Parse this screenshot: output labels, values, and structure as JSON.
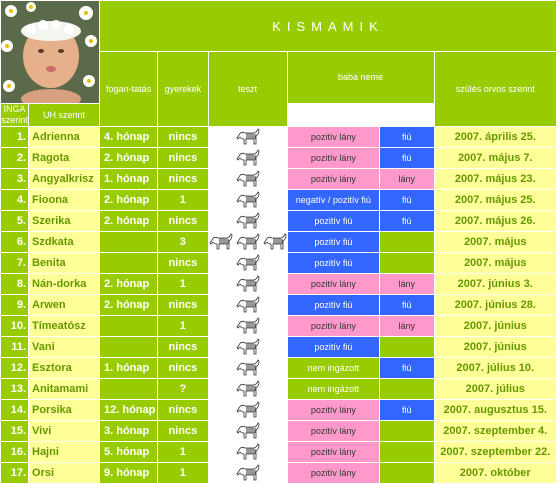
{
  "title": "KISMAMIK",
  "headers": {
    "foganatas": "fogan-tatás",
    "gyerekek": "gyerekek",
    "teszt": "teszt",
    "baba_neme": "baba neme",
    "inga": "INGA szerint",
    "uh": "UH szerint",
    "szules": "szülés orvos szerint"
  },
  "colors": {
    "green": "#99cc00",
    "yellow": "#ffff99",
    "pink": "#ff99cc",
    "blue": "#3366ff",
    "text_green": "#669900"
  },
  "rows": [
    {
      "num": "1.",
      "name": "Adrienna",
      "fog": "4. hónap",
      "gyer": "nincs",
      "zebras": 1,
      "inga": "pozitív lány",
      "inga_color": "pink",
      "uh": "fiú",
      "uh_color": "blue",
      "szul": "2007. április 25."
    },
    {
      "num": "2.",
      "name": "Ragota",
      "fog": "2. hónap",
      "gyer": "nincs",
      "zebras": 1,
      "inga": "pozitív lány",
      "inga_color": "pink",
      "uh": "fiú",
      "uh_color": "blue",
      "szul": "2007. május 7."
    },
    {
      "num": "3.",
      "name": "Angyalkrisz",
      "fog": "1. hónap",
      "gyer": "nincs",
      "zebras": 1,
      "inga": "pozitív lány",
      "inga_color": "pink",
      "uh": "lány",
      "uh_color": "pink",
      "szul": "2007. május 23."
    },
    {
      "num": "4.",
      "name": "Fioona",
      "fog": "2. hónap",
      "gyer": "1",
      "zebras": 1,
      "inga": "negatív / pozitív fiú",
      "inga_color": "blue",
      "uh": "fiú",
      "uh_color": "blue",
      "szul": "2007. május 25."
    },
    {
      "num": "5.",
      "name": "Szerika",
      "fog": "2. hónap",
      "gyer": "nincs",
      "zebras": 1,
      "inga": "pozitív fiú",
      "inga_color": "blue",
      "uh": "fiú",
      "uh_color": "blue",
      "szul": "2007. május 26."
    },
    {
      "num": "6.",
      "name": "Szdkata",
      "fog": "",
      "gyer": "3",
      "zebras": 3,
      "inga": "pozitív fiú",
      "inga_color": "blue",
      "uh": "",
      "uh_color": "green",
      "szul": "2007. május"
    },
    {
      "num": "7.",
      "name": "Benita",
      "fog": "",
      "gyer": "nincs",
      "zebras": 1,
      "inga": "pozitív fiú",
      "inga_color": "blue",
      "uh": "",
      "uh_color": "green",
      "szul": "2007. május"
    },
    {
      "num": "8.",
      "name": "Nán-dorka",
      "fog": "2. hónap",
      "gyer": "1",
      "zebras": 1,
      "inga": "pozitív lány",
      "inga_color": "pink",
      "uh": "lány",
      "uh_color": "pink",
      "szul": "2007. június 3."
    },
    {
      "num": "9.",
      "name": "Arwen",
      "fog": "2. hónap",
      "gyer": "nincs",
      "zebras": 1,
      "inga": "pozitív fiú",
      "inga_color": "blue",
      "uh": "fiú",
      "uh_color": "blue",
      "szul": "2007. június 28."
    },
    {
      "num": "10.",
      "name": "Tímeatósz",
      "fog": "",
      "gyer": "1",
      "zebras": 1,
      "inga": "pozitív lány",
      "inga_color": "pink",
      "uh": "lány",
      "uh_color": "pink",
      "szul": "2007. június"
    },
    {
      "num": "11.",
      "name": "Vani",
      "fog": "",
      "gyer": "nincs",
      "zebras": 1,
      "inga": "pozitív fiú",
      "inga_color": "blue",
      "uh": "",
      "uh_color": "green",
      "szul": "2007. június"
    },
    {
      "num": "12.",
      "name": "Esztora",
      "fog": "1. hónap",
      "gyer": "nincs",
      "zebras": 1,
      "inga": "nem ingázott",
      "inga_color": "green",
      "uh": "fiú",
      "uh_color": "blue",
      "szul": "2007. július 10."
    },
    {
      "num": "13.",
      "name": "Anitamami",
      "fog": "",
      "gyer": "?",
      "zebras": 1,
      "inga": "nem ingázott",
      "inga_color": "green",
      "uh": "",
      "uh_color": "green",
      "szul": "2007. július"
    },
    {
      "num": "14.",
      "name": "Porsika",
      "fog": "12. hónap",
      "gyer": "nincs",
      "zebras": 1,
      "inga": "pozitív lány",
      "inga_color": "pink",
      "uh": "fiú",
      "uh_color": "blue",
      "szul": "2007. augusztus 15."
    },
    {
      "num": "15.",
      "name": "Vivi",
      "fog": "3. hónap",
      "gyer": "nincs",
      "zebras": 1,
      "inga": "pozitív lány",
      "inga_color": "pink",
      "uh": "",
      "uh_color": "green",
      "szul": "2007. szeptember 4."
    },
    {
      "num": "16.",
      "name": "Hajni",
      "fog": "5. hónap",
      "gyer": "1",
      "zebras": 1,
      "inga": "pozitív lány",
      "inga_color": "pink",
      "uh": "",
      "uh_color": "green",
      "szul": "2007. szeptember 22."
    },
    {
      "num": "17.",
      "name": "Orsi",
      "fog": "9. hónap",
      "gyer": "1",
      "zebras": 1,
      "inga": "pozitív lány",
      "inga_color": "pink",
      "uh": "",
      "uh_color": "green",
      "szul": "2007. október"
    }
  ]
}
